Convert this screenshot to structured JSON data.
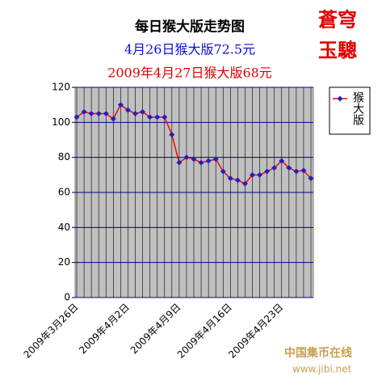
{
  "chart_data": {
    "type": "line",
    "title": "每日猴大版走势图",
    "subtitle": "4月26日猴大版72.5元",
    "subtitle2": "2009年4月27日猴大版68元",
    "logo_line1": "蒼穹",
    "logo_line2": "玉驄",
    "watermark": "中国集币在线",
    "watermark_url": "www.jibi.net",
    "categories": [
      "2009年3月26日",
      null,
      null,
      null,
      null,
      null,
      null,
      "2009年4月2日",
      null,
      null,
      null,
      null,
      null,
      null,
      "2009年4月9日",
      null,
      null,
      null,
      null,
      null,
      null,
      "2009年4月16日",
      null,
      null,
      null,
      null,
      null,
      null,
      "2009年4月23日",
      null,
      null,
      null,
      null
    ],
    "series": [
      {
        "name": "猴大版",
        "color": "#ff0000",
        "marker_color": "#2020c0",
        "values": [
          103,
          106,
          105,
          105,
          105,
          102,
          110,
          107,
          105,
          106,
          103,
          103,
          103,
          93,
          77,
          80,
          79,
          77,
          78,
          79,
          72,
          68,
          67,
          65,
          70,
          70,
          72,
          74,
          78,
          74,
          72,
          72.5,
          68
        ]
      }
    ],
    "ylim": [
      0,
      120
    ],
    "yticks": [
      0,
      20,
      40,
      60,
      80,
      100,
      120
    ],
    "grid": true
  }
}
